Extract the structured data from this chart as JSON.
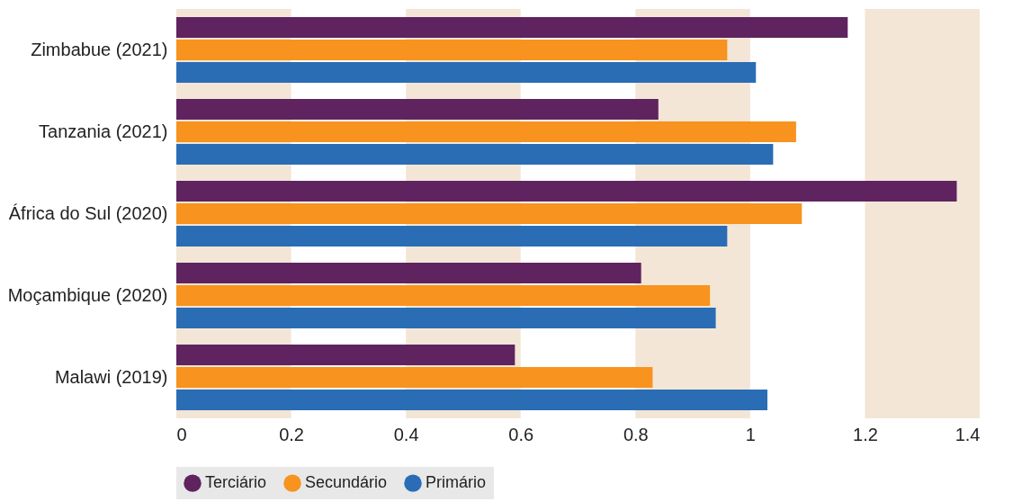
{
  "chart_data": {
    "type": "bar",
    "orientation": "horizontal",
    "categories": [
      "Zimbabue (2021)",
      "Tanzania (2021)",
      "África do Sul (2020)",
      "Moçambique (2020)",
      "Malawi (2019)"
    ],
    "series": [
      {
        "name": "Terciário",
        "color": "#5f2360",
        "values": [
          1.17,
          0.84,
          1.36,
          0.81,
          0.59
        ]
      },
      {
        "name": "Secundário",
        "color": "#f7931e",
        "values": [
          0.96,
          1.08,
          1.09,
          0.93,
          0.83
        ]
      },
      {
        "name": "Primário",
        "color": "#2a6db5",
        "values": [
          1.01,
          1.04,
          0.96,
          0.94,
          1.03
        ]
      }
    ],
    "xlim": [
      0,
      1.4
    ],
    "xticks": [
      0,
      0.2,
      0.4,
      0.6,
      0.8,
      1,
      1.2,
      1.4
    ],
    "bands": [
      {
        "axis": "x",
        "from": 0,
        "to": 0.2,
        "color": "#f3e6d6"
      },
      {
        "axis": "x",
        "from": 0.4,
        "to": 0.6,
        "color": "#f3e6d6"
      },
      {
        "axis": "x",
        "from": 0.8,
        "to": 1,
        "color": "#f3e6d6"
      },
      {
        "axis": "x",
        "from": 1.2,
        "to": 1.4,
        "color": "#f3e6d6"
      }
    ],
    "legend": "bottom"
  }
}
